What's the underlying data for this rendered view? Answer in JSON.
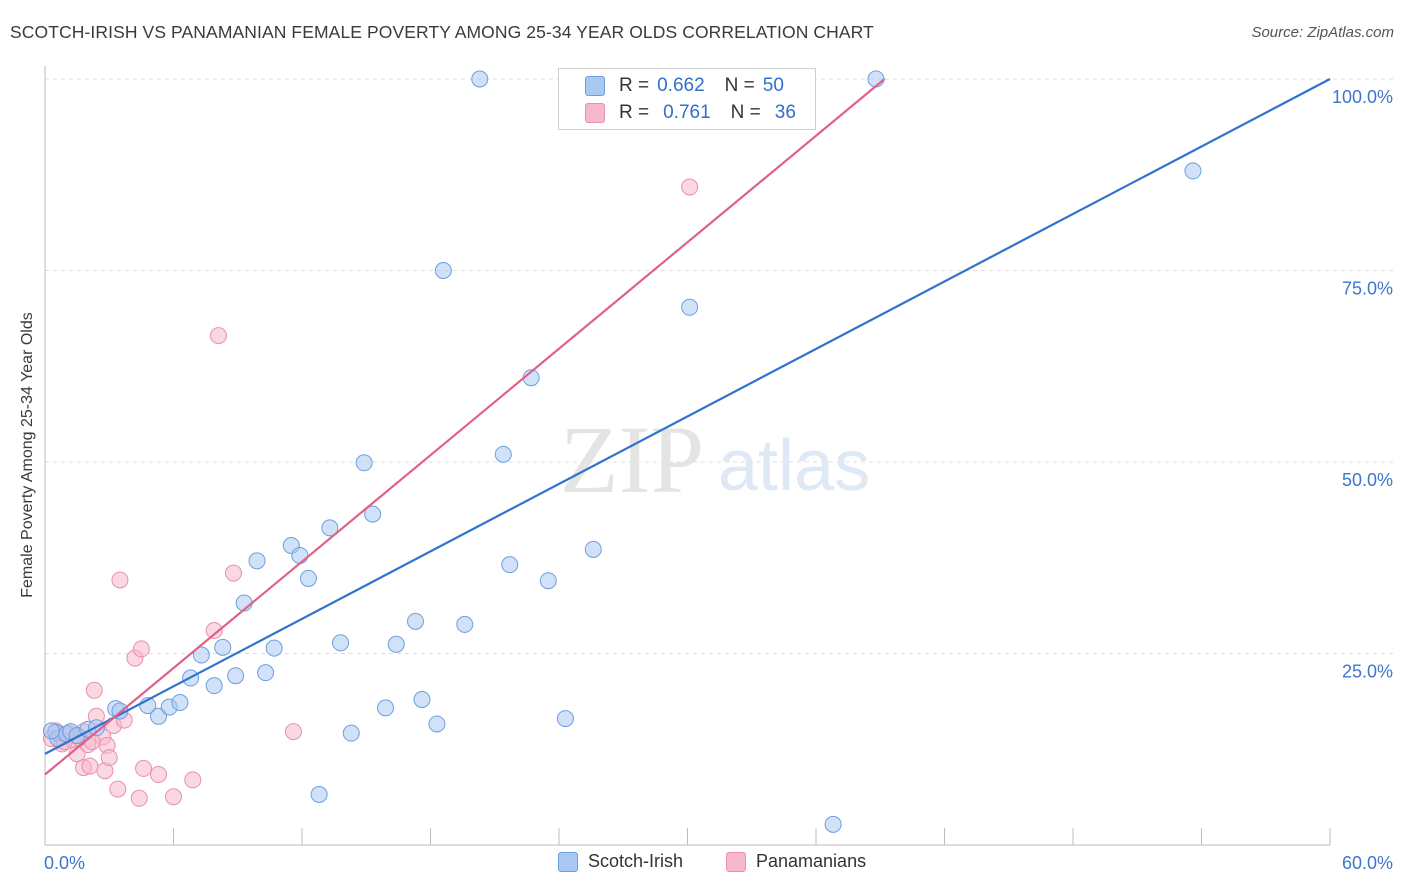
{
  "title": "SCOTCH-IRISH VS PANAMANIAN FEMALE POVERTY AMONG 25-34 YEAR OLDS CORRELATION CHART",
  "source": "Source: ZipAtlas.com",
  "watermark": {
    "zip": "ZIP",
    "atlas": "atlas"
  },
  "legend_stats": [
    {
      "r_label": "R =",
      "r_value": "0.662",
      "n_label": "N =",
      "n_value": "50"
    },
    {
      "r_label": "R =",
      "r_value": "0.761",
      "n_label": "N =",
      "n_value": "36"
    }
  ],
  "colors": {
    "scotch_fill": "#a9c8f2",
    "scotch_stroke": "#6d9fe0",
    "scotch_line": "#2f73cf",
    "pan_fill": "#f6b8cb",
    "pan_stroke": "#ea8fac",
    "pan_line": "#e0608a",
    "axis_text": "#3d76cc",
    "grid": "#dcdcdc"
  },
  "chart_data": {
    "type": "scatter",
    "xlabel": "",
    "ylabel": "Female Poverty Among 25-34 Year Olds",
    "xlim": [
      0,
      60
    ],
    "ylim": [
      0,
      100
    ],
    "x_tick_labels": [
      "0.0%",
      "60.0%"
    ],
    "y_ticks": [
      25,
      50,
      75,
      100
    ],
    "y_tick_labels": [
      "25.0%",
      "50.0%",
      "75.0%",
      "100.0%"
    ],
    "grid": true,
    "legend_position": "bottom",
    "series": [
      {
        "name": "Scotch-Irish",
        "color": "#a9c8f2",
        "points": [
          [
            0.5,
            14.7
          ],
          [
            0.6,
            13.9
          ],
          [
            1.0,
            14.5
          ],
          [
            1.2,
            14.8
          ],
          [
            1.5,
            14.3
          ],
          [
            2.0,
            15.1
          ],
          [
            2.4,
            15.3
          ],
          [
            3.3,
            17.8
          ],
          [
            3.5,
            17.5
          ],
          [
            4.8,
            18.2
          ],
          [
            5.3,
            16.8
          ],
          [
            5.8,
            18.0
          ],
          [
            6.3,
            18.6
          ],
          [
            6.8,
            21.8
          ],
          [
            7.3,
            24.8
          ],
          [
            7.9,
            20.8
          ],
          [
            8.3,
            25.8
          ],
          [
            8.9,
            22.1
          ],
          [
            9.3,
            31.6
          ],
          [
            9.9,
            37.1
          ],
          [
            10.3,
            22.5
          ],
          [
            10.7,
            25.7
          ],
          [
            11.5,
            39.1
          ],
          [
            11.9,
            37.8
          ],
          [
            12.3,
            34.8
          ],
          [
            12.8,
            6.6
          ],
          [
            13.3,
            41.4
          ],
          [
            13.8,
            26.4
          ],
          [
            14.3,
            14.6
          ],
          [
            14.9,
            49.9
          ],
          [
            15.3,
            43.2
          ],
          [
            15.9,
            17.9
          ],
          [
            16.4,
            26.2
          ],
          [
            17.3,
            29.2
          ],
          [
            17.6,
            19.0
          ],
          [
            18.3,
            15.8
          ],
          [
            18.6,
            75.0
          ],
          [
            19.6,
            28.8
          ],
          [
            20.3,
            100.0
          ],
          [
            21.4,
            51.0
          ],
          [
            21.7,
            36.6
          ],
          [
            22.7,
            61.0
          ],
          [
            23.5,
            34.5
          ],
          [
            24.3,
            16.5
          ],
          [
            25.6,
            38.6
          ],
          [
            30.1,
            70.2
          ],
          [
            36.8,
            2.7
          ],
          [
            38.8,
            100.0
          ],
          [
            53.6,
            88.0
          ],
          [
            0.3,
            14.9
          ]
        ],
        "trend": [
          [
            0,
            11.9
          ],
          [
            60,
            100.0
          ]
        ]
      },
      {
        "name": "Panamanians",
        "color": "#f6b8cb",
        "points": [
          [
            0.3,
            13.9
          ],
          [
            0.5,
            14.9
          ],
          [
            0.8,
            13.2
          ],
          [
            1.0,
            14.2
          ],
          [
            1.3,
            13.7
          ],
          [
            1.5,
            11.9
          ],
          [
            1.8,
            14.8
          ],
          [
            1.8,
            10.1
          ],
          [
            2.0,
            13.1
          ],
          [
            2.1,
            10.3
          ],
          [
            2.3,
            20.2
          ],
          [
            2.4,
            16.8
          ],
          [
            2.7,
            14.1
          ],
          [
            2.8,
            9.7
          ],
          [
            2.9,
            13.0
          ],
          [
            3.0,
            11.4
          ],
          [
            3.2,
            15.6
          ],
          [
            3.4,
            7.3
          ],
          [
            3.5,
            34.6
          ],
          [
            3.7,
            16.3
          ],
          [
            4.2,
            24.4
          ],
          [
            4.4,
            6.1
          ],
          [
            4.5,
            25.6
          ],
          [
            4.6,
            10.0
          ],
          [
            5.3,
            9.2
          ],
          [
            6.0,
            6.3
          ],
          [
            6.9,
            8.5
          ],
          [
            7.9,
            28.0
          ],
          [
            8.1,
            66.5
          ],
          [
            8.8,
            35.5
          ],
          [
            11.6,
            14.8
          ],
          [
            30.1,
            85.9
          ],
          [
            1.1,
            14.6
          ],
          [
            0.9,
            13.5
          ],
          [
            1.6,
            14.0
          ],
          [
            2.2,
            13.5
          ]
        ],
        "trend": [
          [
            0,
            9.2
          ],
          [
            39.2,
            100.0
          ]
        ]
      }
    ]
  }
}
